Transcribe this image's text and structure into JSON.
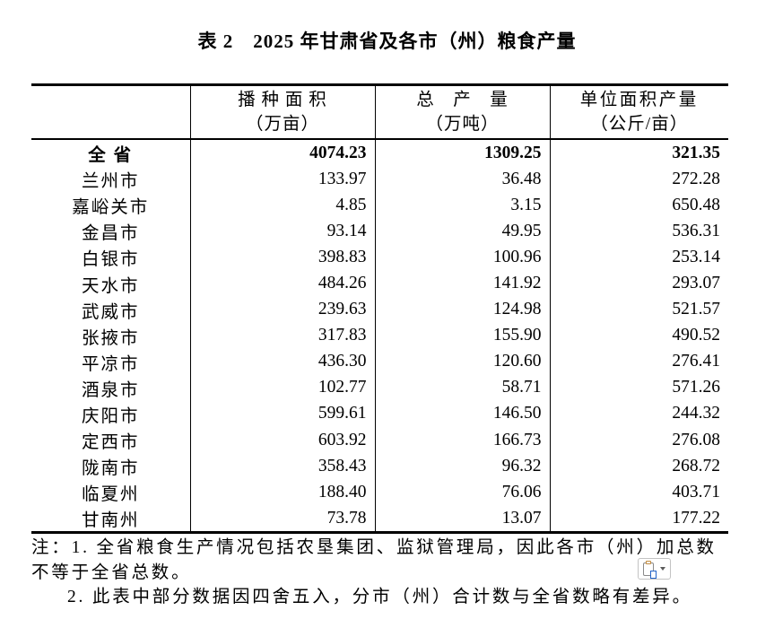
{
  "title": "表 2　2025 年甘肃省及各市（州）粮食产量",
  "table": {
    "header": {
      "col1_line1": "",
      "col1_line2": "",
      "col2_line1": "播 种 面 积",
      "col2_line2": "（万亩）",
      "col3_line1": "总　产　量",
      "col3_line2": "（万吨）",
      "col4_line1": "单位面积产量",
      "col4_line2": "（公斤/亩）"
    },
    "rows": [
      {
        "region": "全 省",
        "sown_area_wan_mu": "4074.23",
        "total_output_wan_ton": "1309.25",
        "yield_kg_per_mu": "321.35"
      },
      {
        "region": "兰州市",
        "sown_area_wan_mu": "133.97",
        "total_output_wan_ton": "36.48",
        "yield_kg_per_mu": "272.28"
      },
      {
        "region": "嘉峪关市",
        "sown_area_wan_mu": "4.85",
        "total_output_wan_ton": "3.15",
        "yield_kg_per_mu": "650.48"
      },
      {
        "region": "金昌市",
        "sown_area_wan_mu": "93.14",
        "total_output_wan_ton": "49.95",
        "yield_kg_per_mu": "536.31"
      },
      {
        "region": "白银市",
        "sown_area_wan_mu": "398.83",
        "total_output_wan_ton": "100.96",
        "yield_kg_per_mu": "253.14"
      },
      {
        "region": "天水市",
        "sown_area_wan_mu": "484.26",
        "total_output_wan_ton": "141.92",
        "yield_kg_per_mu": "293.07"
      },
      {
        "region": "武威市",
        "sown_area_wan_mu": "239.63",
        "total_output_wan_ton": "124.98",
        "yield_kg_per_mu": "521.57"
      },
      {
        "region": "张掖市",
        "sown_area_wan_mu": "317.83",
        "total_output_wan_ton": "155.90",
        "yield_kg_per_mu": "490.52"
      },
      {
        "region": "平凉市",
        "sown_area_wan_mu": "436.30",
        "total_output_wan_ton": "120.60",
        "yield_kg_per_mu": "276.41"
      },
      {
        "region": "酒泉市",
        "sown_area_wan_mu": "102.77",
        "total_output_wan_ton": "58.71",
        "yield_kg_per_mu": "571.26"
      },
      {
        "region": "庆阳市",
        "sown_area_wan_mu": "599.61",
        "total_output_wan_ton": "146.50",
        "yield_kg_per_mu": "244.32"
      },
      {
        "region": "定西市",
        "sown_area_wan_mu": "603.92",
        "total_output_wan_ton": "166.73",
        "yield_kg_per_mu": "276.08"
      },
      {
        "region": "陇南市",
        "sown_area_wan_mu": "358.43",
        "total_output_wan_ton": "96.32",
        "yield_kg_per_mu": "268.72"
      },
      {
        "region": "临夏州",
        "sown_area_wan_mu": "188.40",
        "total_output_wan_ton": "76.06",
        "yield_kg_per_mu": "403.71"
      },
      {
        "region": "甘南州",
        "sown_area_wan_mu": "73.78",
        "total_output_wan_ton": "13.07",
        "yield_kg_per_mu": "177.22"
      }
    ]
  },
  "notes": {
    "line1": "注：1. 全省粮食生产情况包括农垦集团、监狱管理局，因此各市（州）加总数",
    "line2": "不等于全省总数。",
    "line3": "2. 此表中部分数据因四舍五入，分市（州）合计数与全省数略有差异。"
  },
  "paste_options": {
    "icon": "clipboard-paste-icon",
    "chevron_icon": "chevron-down-icon"
  },
  "colors": {
    "text": "#000000",
    "table_border": "#000000",
    "background": "#ffffff",
    "paste_button_border": "#c3c3c3",
    "paste_doc_blue": "#2464c9",
    "paste_clip_tan": "#c08a3e"
  }
}
